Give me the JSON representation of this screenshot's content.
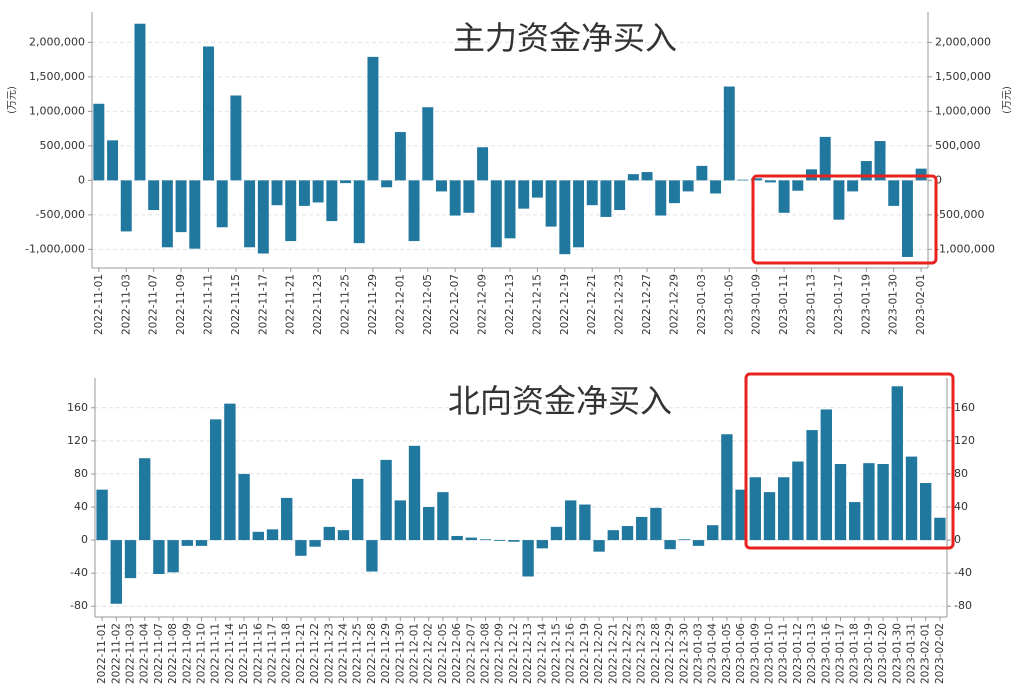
{
  "chart_data": [
    {
      "type": "bar",
      "title": "主力资金净买入",
      "ylabel": "(万元)",
      "y2label": "(万元)",
      "categories": [
        "2022-11-01",
        null,
        "2022-11-03",
        null,
        "2022-11-07",
        null,
        "2022-11-09",
        null,
        "2022-11-11",
        null,
        "2022-11-15",
        null,
        "2022-11-17",
        null,
        "2022-11-21",
        null,
        "2022-11-23",
        null,
        "2022-11-25",
        null,
        "2022-11-29",
        null,
        "2022-12-01",
        null,
        "2022-12-05",
        null,
        "2022-12-07",
        null,
        "2022-12-09",
        null,
        "2022-12-13",
        null,
        "2022-12-15",
        null,
        "2022-12-19",
        null,
        "2022-12-21",
        null,
        "2022-12-23",
        null,
        "2022-12-27",
        null,
        "2022-12-29",
        null,
        "2023-01-03",
        null,
        "2023-01-05",
        null,
        "2023-01-09",
        null,
        "2023-01-11",
        null,
        "2023-01-13",
        null,
        "2023-01-17",
        null,
        "2023-01-19",
        null,
        "2023-01-30",
        null,
        "2023-02-01"
      ],
      "values": [
        1110000,
        580000,
        -740000,
        2270000,
        -430000,
        -970000,
        -750000,
        -990000,
        1940000,
        -680000,
        1230000,
        -970000,
        -1060000,
        -360000,
        -880000,
        -370000,
        -320000,
        -590000,
        -40000,
        -910000,
        1790000,
        -100000,
        700000,
        -880000,
        1060000,
        -160000,
        -510000,
        -470000,
        480000,
        -970000,
        -840000,
        -410000,
        -250000,
        -670000,
        -1070000,
        -970000,
        -360000,
        -530000,
        -430000,
        90000,
        120000,
        -510000,
        -330000,
        -160000,
        210000,
        -190000,
        1360000,
        10000,
        30000,
        -30000,
        -470000,
        -150000,
        160000,
        630000,
        -570000,
        -160000,
        280000,
        570000,
        -370000,
        -1110000,
        170000
      ],
      "color": "#21789f",
      "grid": true,
      "ylim": [
        -1270000,
        2440000
      ],
      "yticks": [
        {
          "value": -1000000,
          "label": "-1,000,000"
        },
        {
          "value": -500000,
          "label": "-500,000"
        },
        0,
        {
          "value": 500000,
          "label": "500,000"
        },
        {
          "value": 1000000,
          "label": "1,000,000"
        },
        {
          "value": 1500000,
          "label": "1,500,000"
        },
        {
          "value": 2000000,
          "label": "2,000,000"
        }
      ],
      "y2lim": [
        -1270000,
        2440000
      ],
      "y2ticks": [
        {
          "value": -1000000,
          "label": "-1,000,000"
        },
        {
          "value": -500000,
          "label": "-500,000"
        },
        0,
        {
          "value": 500000,
          "label": "500,000"
        },
        {
          "value": 1000000,
          "label": "1,000,000"
        },
        {
          "value": 1500000,
          "label": "1,500,000"
        },
        {
          "value": 2000000,
          "label": "2,000,000"
        }
      ]
    },
    {
      "type": "bar",
      "title": "北向资金净买入",
      "categories": [
        "2022-11-01",
        "2022-11-02",
        "2022-11-03",
        "2022-11-04",
        "2022-11-07",
        "2022-11-08",
        "2022-11-09",
        "2022-11-10",
        "2022-11-11",
        "2022-11-14",
        "2022-11-15",
        "2022-11-16",
        "2022-11-17",
        "2022-11-18",
        "2022-11-21",
        "2022-11-22",
        "2022-11-23",
        "2022-11-24",
        "2022-11-25",
        "2022-11-28",
        "2022-11-29",
        "2022-11-30",
        "2022-12-01",
        "2022-12-02",
        "2022-12-05",
        "2022-12-06",
        "2022-12-07",
        "2022-12-08",
        "2022-12-09",
        "2022-12-12",
        "2022-12-13",
        "2022-12-14",
        "2022-12-15",
        "2022-12-16",
        "2022-12-19",
        "2022-12-20",
        "2022-12-21",
        "2022-12-22",
        "2022-12-23",
        "2022-12-28",
        "2022-12-29",
        "2022-12-30",
        "2023-01-03",
        "2023-01-04",
        "2023-01-05",
        "2023-01-06",
        "2023-01-09",
        "2023-01-10",
        "2023-01-11",
        "2023-01-12",
        "2023-01-13",
        "2023-01-16",
        "2023-01-17",
        "2023-01-18",
        "2023-01-19",
        "2023-01-20",
        "2023-01-30",
        "2023-01-31",
        "2023-02-01",
        "2023-02-02"
      ],
      "values": [
        61,
        -77,
        -46,
        99,
        -41,
        -39,
        -7,
        -7,
        146,
        165,
        80,
        10,
        13,
        51,
        -19,
        -8,
        16,
        12,
        74,
        -38,
        97,
        48,
        114,
        40,
        58,
        5,
        3,
        1,
        -1,
        -2,
        -44,
        -10,
        16,
        48,
        43,
        -14,
        12,
        17,
        28,
        39,
        -11,
        1,
        -7,
        18,
        128,
        61,
        76,
        58,
        76,
        95,
        133,
        158,
        92,
        46,
        93,
        92,
        186,
        101,
        69,
        27
      ],
      "color": "#21789f",
      "grid": true,
      "ylim": [
        -93,
        196
      ],
      "yticks": [
        -80,
        -40,
        0,
        40,
        80,
        120,
        160
      ],
      "y2lim": [
        -93,
        196
      ],
      "y2ticks": [
        -80,
        -40,
        0,
        40,
        80,
        120,
        160
      ]
    }
  ]
}
